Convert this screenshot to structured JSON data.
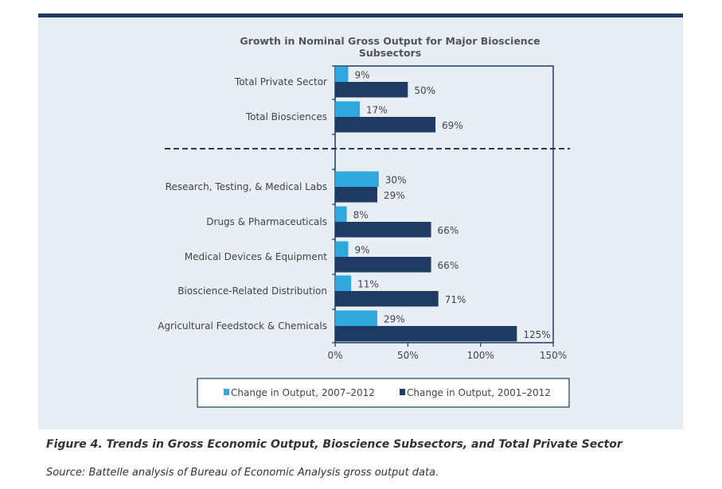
{
  "chart_data": {
    "type": "bar",
    "orientation": "horizontal",
    "title": "Growth in Nominal Gross Output for Major Bioscience Subsectors",
    "categories": [
      "Total Private Sector",
      "Total Biosciences",
      "Research, Testing, & Medical Labs",
      "Drugs & Pharmaceuticals",
      "Medical Devices & Equipment",
      "Bioscience-Related Distribution",
      "Agricultural Feedstock & Chemicals"
    ],
    "series": [
      {
        "name": "Change in Output, 2007–2012",
        "color": "#2fa7df",
        "values": [
          9,
          17,
          30,
          8,
          9,
          11,
          29
        ]
      },
      {
        "name": "Change in Output, 2001–2012",
        "color": "#1f3b63",
        "values": [
          50,
          69,
          29,
          66,
          66,
          71,
          125
        ]
      }
    ],
    "value_labels": [
      [
        "9%",
        "17%",
        "30%",
        "8%",
        "9%",
        "11%",
        "29%"
      ],
      [
        "50%",
        "69%",
        "29%",
        "66%",
        "66%",
        "71%",
        "125%"
      ]
    ],
    "xlim": [
      0,
      150
    ],
    "xticks": [
      "0%",
      "50%",
      "100%",
      "150%"
    ],
    "xtick_values": [
      0,
      50,
      100,
      150
    ],
    "separator": "dashed line between Total Biosciences and subsectors",
    "legend_position": "bottom",
    "grid": false
  },
  "caption": "Figure 4. Trends in Gross Economic Output, Bioscience Subsectors, and Total Private Sector",
  "source": "Source: Battelle analysis of Bureau of Economic Analysis gross output data."
}
